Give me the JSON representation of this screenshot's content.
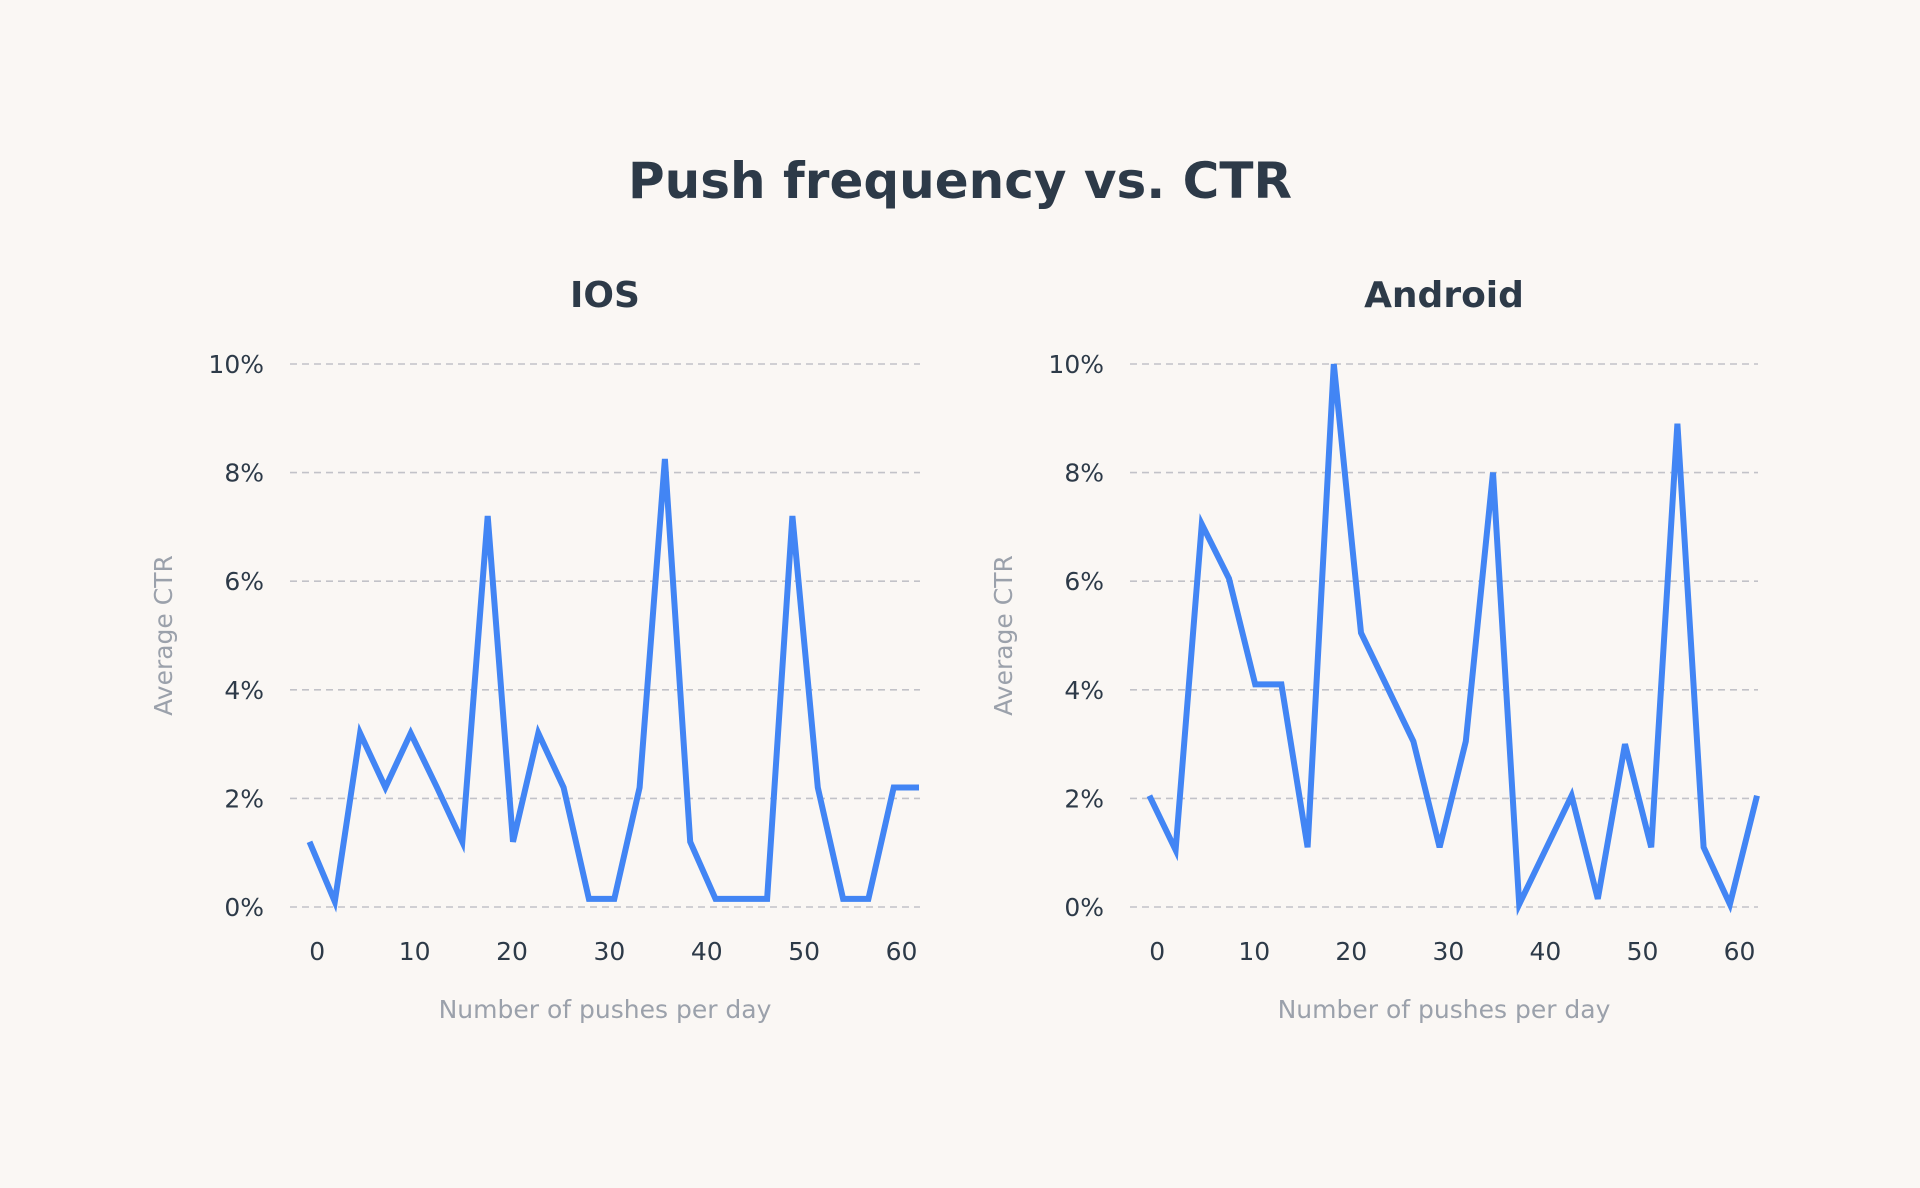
{
  "title": "Push frequency vs. CTR",
  "colors": {
    "line": "#4285f4",
    "background": "#faf7f4"
  },
  "chart_data": [
    {
      "type": "line",
      "title": "IOS",
      "xlabel": "Number of pushes per day",
      "ylabel": "Average CTR",
      "xlim": [
        -2.8,
        61.9
      ],
      "ylim": [
        0,
        10
      ],
      "xticks": [
        0,
        10,
        20,
        30,
        40,
        50,
        60
      ],
      "yticks": [
        0,
        2,
        4,
        6,
        8,
        10
      ],
      "ytick_labels": [
        "0%",
        "2%",
        "4%",
        "6%",
        "8%",
        "10%"
      ],
      "grid": "horizontal dashed",
      "x": [
        -0.8,
        1.8,
        4.4,
        7.0,
        9.6,
        12.3,
        14.9,
        17.5,
        20.1,
        22.7,
        25.3,
        27.9,
        30.5,
        33.1,
        35.7,
        38.3,
        40.9,
        43.6,
        46.2,
        48.8,
        51.4,
        54.0,
        56.6,
        59.2,
        61.8
      ],
      "y": [
        1.2,
        0.1,
        3.2,
        2.2,
        3.2,
        2.2,
        1.2,
        7.2,
        1.2,
        3.2,
        2.2,
        0.15,
        0.15,
        2.2,
        8.25,
        1.2,
        0.15,
        0.15,
        0.15,
        7.2,
        2.2,
        0.15,
        0.15,
        2.2,
        2.2
      ]
    },
    {
      "type": "line",
      "title": "Android",
      "xlabel": "Number of pushes per day",
      "ylabel": "Average CTR",
      "xlim": [
        -2.8,
        61.9
      ],
      "ylim": [
        0,
        10
      ],
      "xticks": [
        0,
        10,
        20,
        30,
        40,
        50,
        60
      ],
      "yticks": [
        0,
        2,
        4,
        6,
        8,
        10
      ],
      "ytick_labels": [
        "0%",
        "2%",
        "4%",
        "6%",
        "8%",
        "10%"
      ],
      "grid": "horizontal dashed",
      "x": [
        -0.8,
        1.9,
        4.6,
        7.4,
        10.1,
        12.8,
        15.5,
        18.2,
        21.0,
        23.7,
        26.4,
        29.1,
        31.8,
        34.6,
        37.3,
        40.0,
        42.7,
        45.4,
        48.2,
        50.9,
        53.6,
        56.3,
        59.0,
        61.8
      ],
      "y": [
        2.05,
        1.05,
        7.05,
        6.05,
        4.1,
        4.1,
        1.1,
        10.0,
        5.05,
        4.05,
        3.05,
        1.1,
        3.05,
        8.0,
        0.05,
        1.05,
        2.05,
        0.15,
        3.0,
        1.1,
        8.9,
        1.1,
        0.05,
        2.05
      ]
    }
  ]
}
